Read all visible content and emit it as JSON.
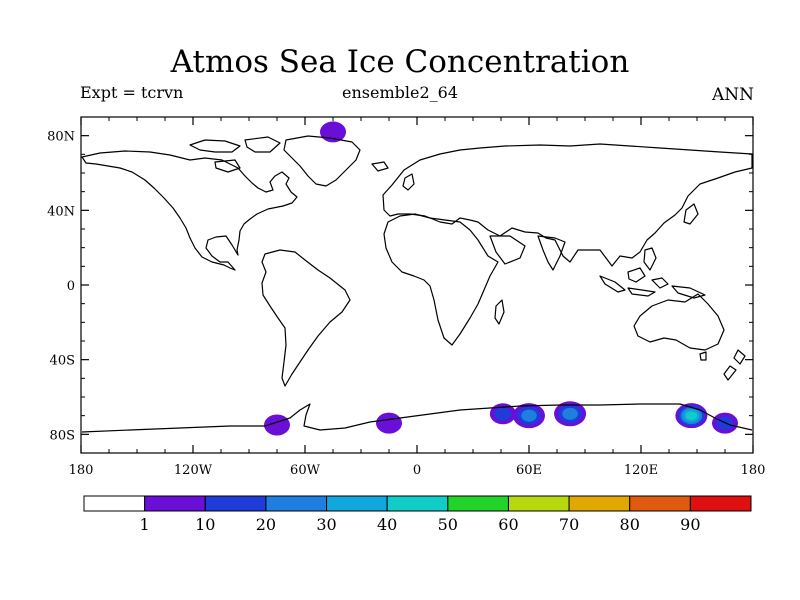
{
  "title": "Atmos Sea Ice Concentration",
  "left_label": "Expt = tcrvn",
  "center_label": "ensemble2_64",
  "right_label": "ANN",
  "chart_data": {
    "type": "heatmap",
    "projection": "cylindrical equidistant",
    "x_range": [
      -180,
      180
    ],
    "y_range": [
      -90,
      90
    ],
    "x_ticks": [
      {
        "value": -180,
        "label": "180"
      },
      {
        "value": -120,
        "label": "120W"
      },
      {
        "value": -60,
        "label": "60W"
      },
      {
        "value": 0,
        "label": "0"
      },
      {
        "value": 60,
        "label": "60E"
      },
      {
        "value": 120,
        "label": "120E"
      },
      {
        "value": 180,
        "label": "180"
      }
    ],
    "y_ticks": [
      {
        "value": 80,
        "label": "80N"
      },
      {
        "value": 40,
        "label": "40N"
      },
      {
        "value": 0,
        "label": "0"
      },
      {
        "value": -40,
        "label": "40S"
      },
      {
        "value": -80,
        "label": "80S"
      }
    ],
    "colorbar": {
      "levels": [
        1,
        10,
        20,
        30,
        40,
        50,
        60,
        70,
        80,
        90
      ],
      "colors": [
        "#ffffff",
        "#6a0fd8",
        "#1f3bd9",
        "#1f7fe0",
        "#10a6de",
        "#10cdc8",
        "#22d42a",
        "#b8d80e",
        "#e0a800",
        "#e05a10",
        "#e01010"
      ]
    },
    "ice_patches": [
      {
        "lon": -75,
        "lat": -75,
        "max_value": 8
      },
      {
        "lon": -15,
        "lat": -74,
        "max_value": 8
      },
      {
        "lon": 46,
        "lat": -69,
        "max_value": 10
      },
      {
        "lon": 60,
        "lat": -70,
        "max_value": 25
      },
      {
        "lon": 82,
        "lat": -69,
        "max_value": 25
      },
      {
        "lon": 147,
        "lat": -70,
        "max_value": 40
      },
      {
        "lon": 165,
        "lat": -74,
        "max_value": 10
      },
      {
        "lon": -45,
        "lat": 82,
        "max_value": 8
      }
    ]
  }
}
